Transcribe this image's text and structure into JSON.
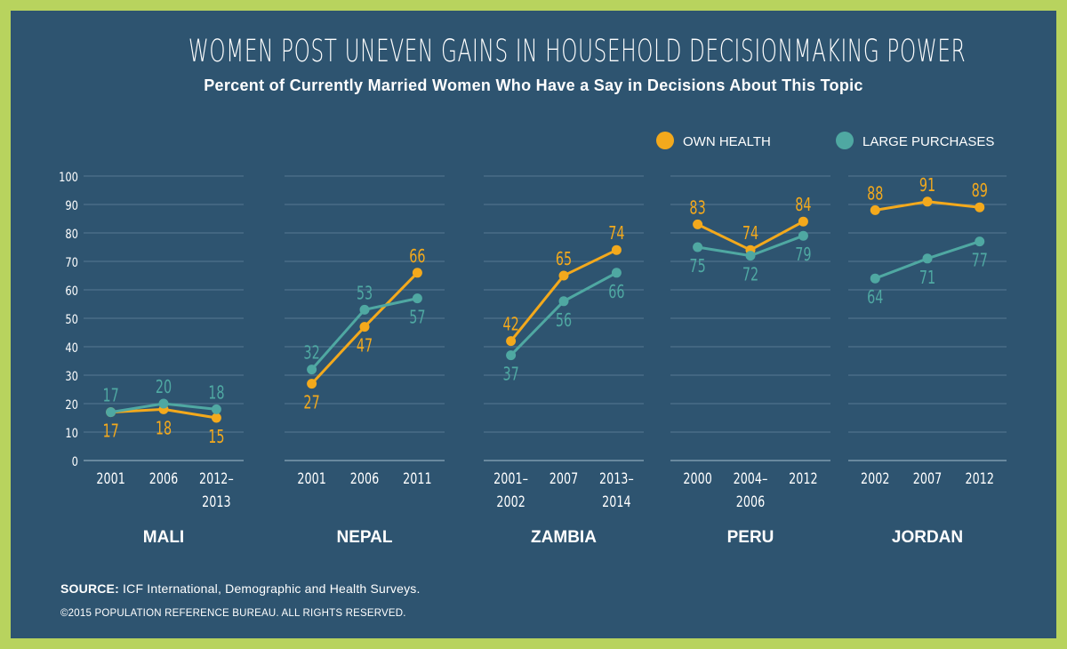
{
  "title": "WOMEN POST UNEVEN GAINS IN HOUSEHOLD DECISIONMAKING POWER",
  "subtitle": "Percent of Currently Married Women Who Have a Say in Decisions About This Topic",
  "source_label": "SOURCE:",
  "source_text": " ICF International, Demographic and Health Surveys.",
  "copyright": "©2015 POPULATION REFERENCE BUREAU. ALL RIGHTS RESERVED.",
  "colors": {
    "background": "#2e5470",
    "border": "#b8d35e",
    "own_health": "#f3a91c",
    "large_purchases": "#4fa8a2",
    "grid": "#8aa7ba"
  },
  "chart_data": {
    "type": "line",
    "ylim": [
      0,
      100
    ],
    "yticks": [
      "0",
      "10",
      "20",
      "30",
      "40",
      "50",
      "60",
      "70",
      "80",
      "90",
      "100"
    ],
    "legend": {
      "placement": "top-right",
      "entries": [
        "OWN HEALTH",
        "LARGE PURCHASES"
      ]
    },
    "panels": [
      {
        "country": "MALI",
        "categories": [
          [
            "2001"
          ],
          [
            "2006"
          ],
          [
            "2012–",
            "2013"
          ]
        ],
        "series": [
          {
            "name": "OWN HEALTH",
            "values": [
              17,
              18,
              15
            ],
            "labels": [
              "17",
              "18",
              "15"
            ]
          },
          {
            "name": "LARGE PURCHASES",
            "values": [
              17,
              20,
              18
            ],
            "labels": [
              "17",
              "20",
              "18"
            ]
          }
        ]
      },
      {
        "country": "NEPAL",
        "categories": [
          [
            "2001"
          ],
          [
            "2006"
          ],
          [
            "2011"
          ]
        ],
        "series": [
          {
            "name": "OWN HEALTH",
            "values": [
              27,
              47,
              66
            ],
            "labels": [
              "27",
              "47",
              "66"
            ]
          },
          {
            "name": "LARGE PURCHASES",
            "values": [
              32,
              53,
              57
            ],
            "labels": [
              "32",
              "53",
              "57"
            ]
          }
        ]
      },
      {
        "country": "ZAMBIA",
        "categories": [
          [
            "2001–",
            "2002"
          ],
          [
            "2007"
          ],
          [
            "2013–",
            "2014"
          ]
        ],
        "series": [
          {
            "name": "OWN HEALTH",
            "values": [
              42,
              65,
              74
            ],
            "labels": [
              "42",
              "65",
              "74"
            ]
          },
          {
            "name": "LARGE PURCHASES",
            "values": [
              37,
              56,
              66
            ],
            "labels": [
              "37",
              "56",
              "66"
            ]
          }
        ]
      },
      {
        "country": "PERU",
        "categories": [
          [
            "2000"
          ],
          [
            "2004–",
            "2006"
          ],
          [
            "2012"
          ]
        ],
        "series": [
          {
            "name": "OWN HEALTH",
            "values": [
              83,
              74,
              84
            ],
            "labels": [
              "83",
              "74",
              "84"
            ]
          },
          {
            "name": "LARGE PURCHASES",
            "values": [
              75,
              72,
              79
            ],
            "labels": [
              "75",
              "72",
              "79"
            ]
          }
        ]
      },
      {
        "country": "JORDAN",
        "categories": [
          [
            "2002"
          ],
          [
            "2007"
          ],
          [
            "2012"
          ]
        ],
        "series": [
          {
            "name": "OWN HEALTH",
            "values": [
              88,
              91,
              89
            ],
            "labels": [
              "88",
              "91",
              "89"
            ]
          },
          {
            "name": "LARGE PURCHASES",
            "values": [
              64,
              71,
              77
            ],
            "labels": [
              "64",
              "71",
              "77"
            ]
          }
        ]
      }
    ]
  }
}
